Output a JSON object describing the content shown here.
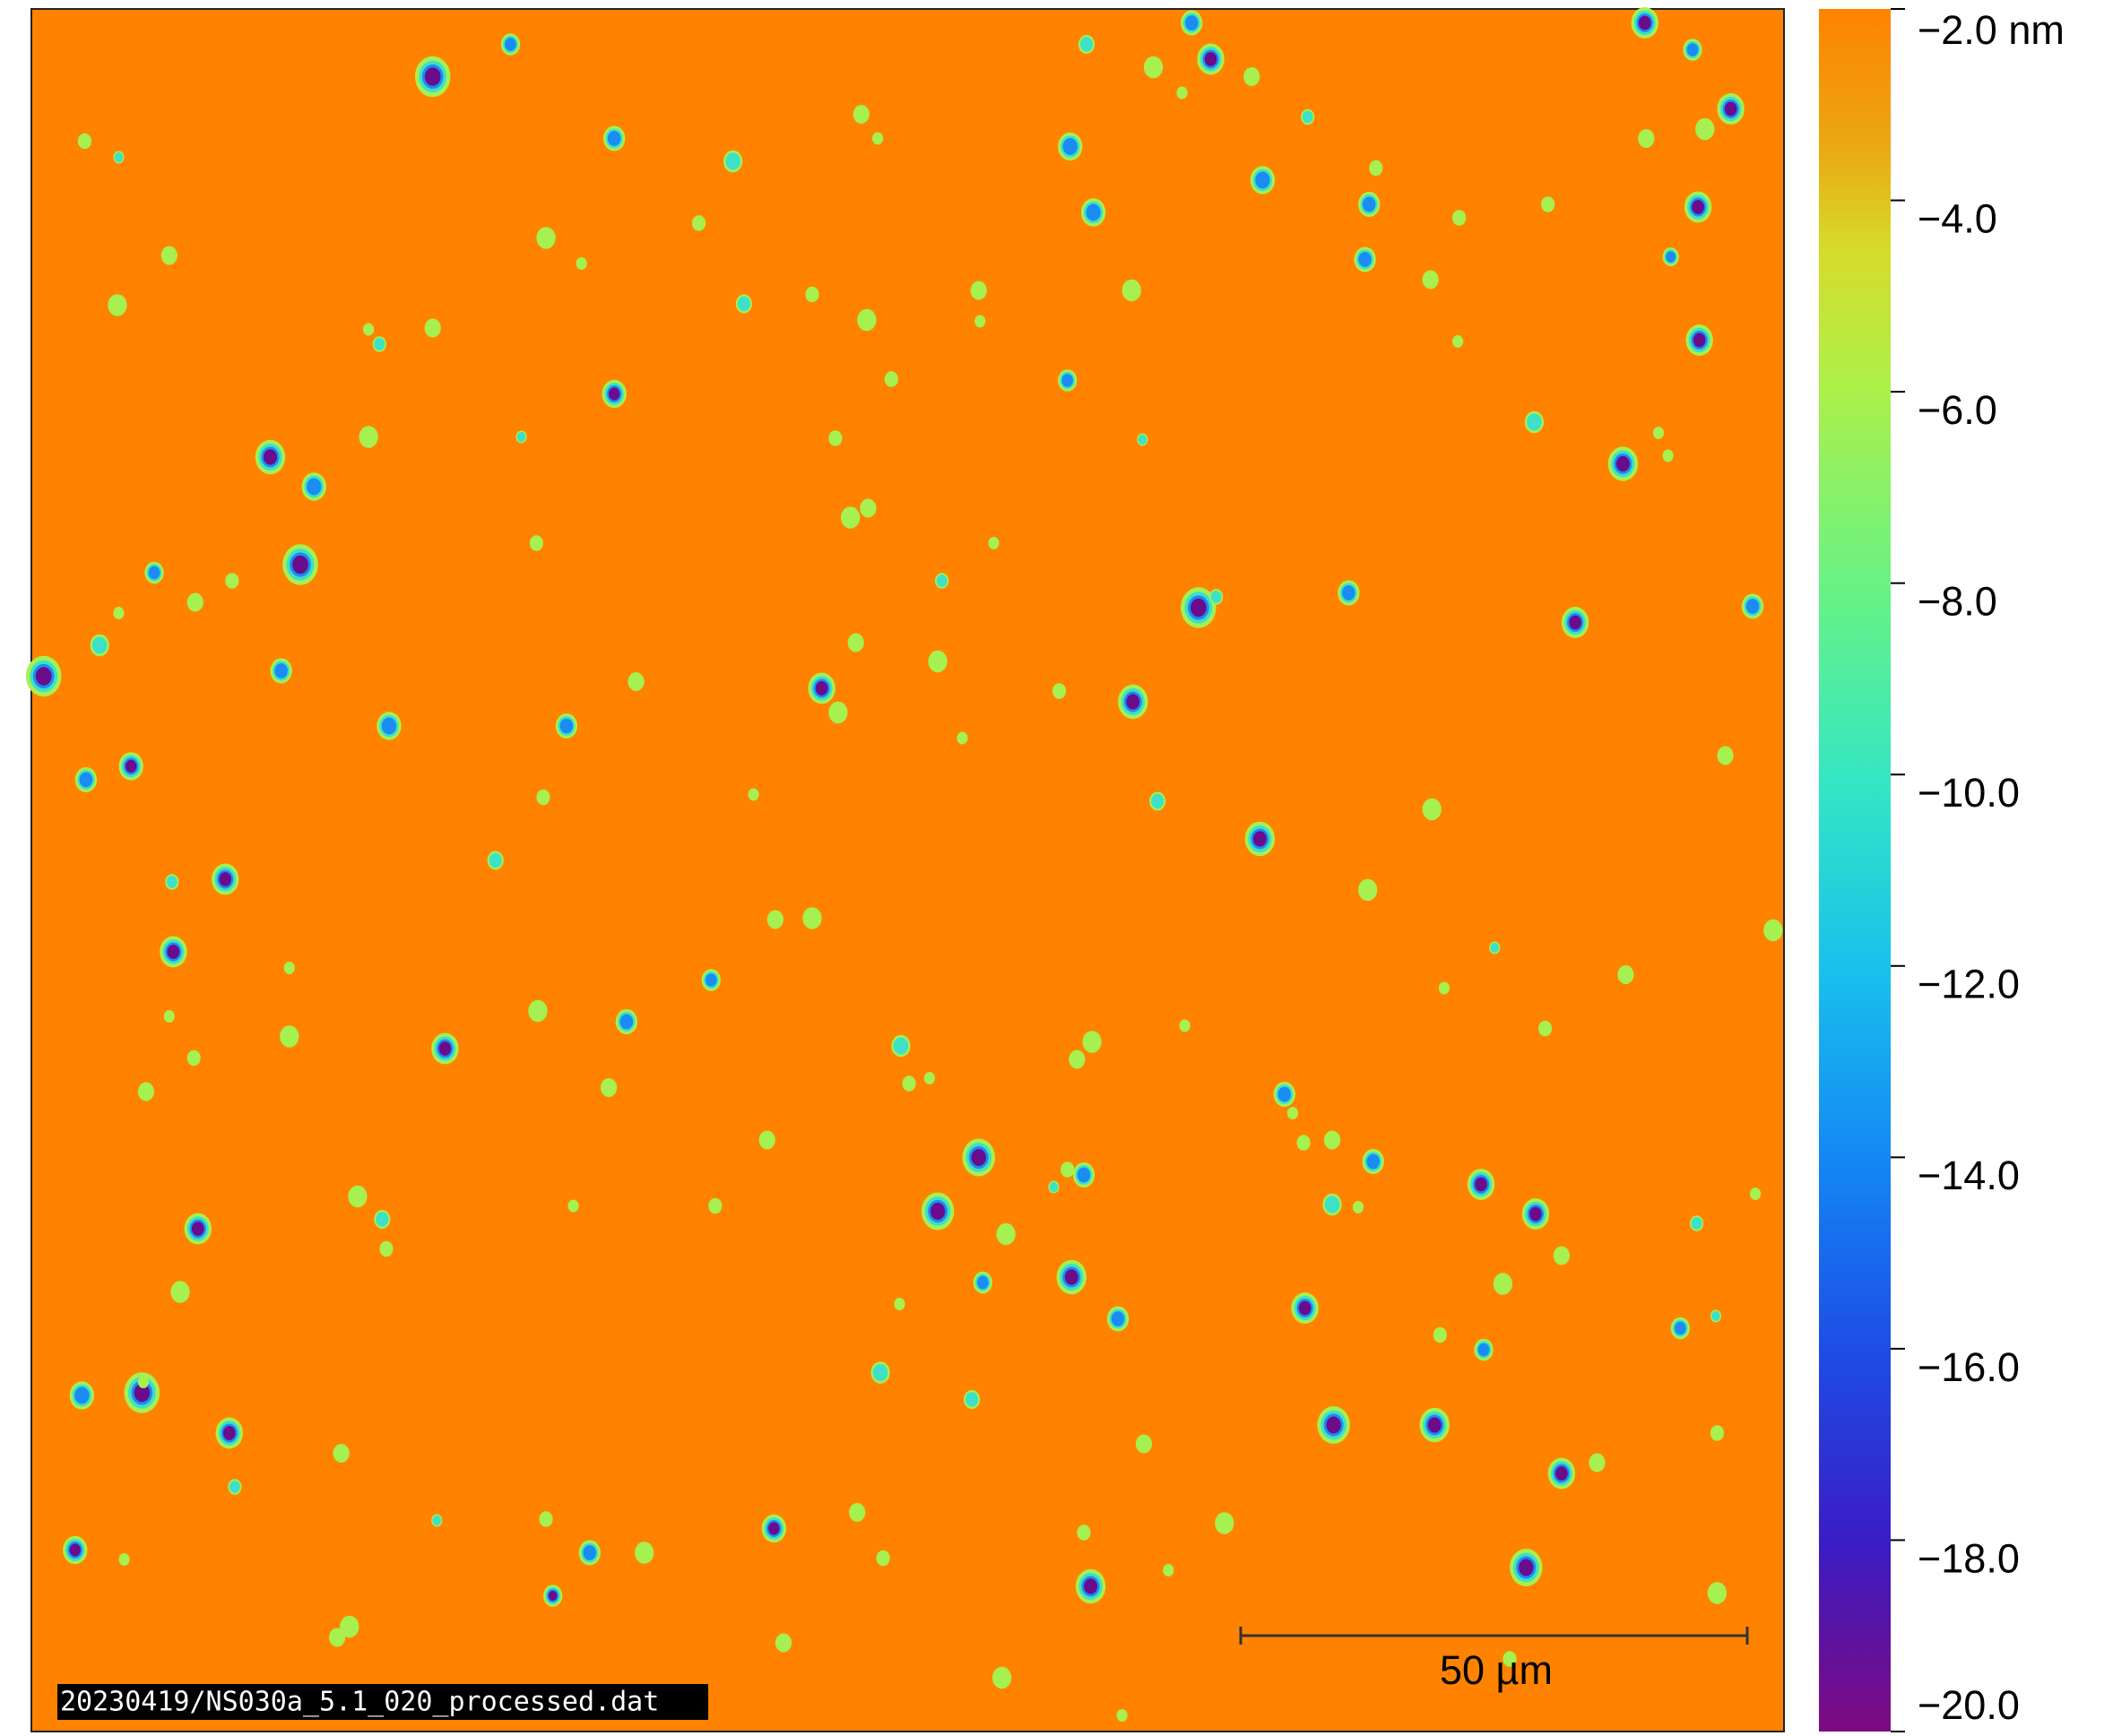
{
  "chart_data": {
    "type": "heatmap",
    "ylim": [
      -20,
      -2
    ],
    "yticks": [
      {
        "value": -2,
        "label": "−2.0 nm"
      },
      {
        "value": -4,
        "label": "−4.0"
      },
      {
        "value": -6,
        "label": "−6.0"
      },
      {
        "value": -8,
        "label": "−8.0"
      },
      {
        "value": -10,
        "label": "−10.0"
      },
      {
        "value": -12,
        "label": "−12.0"
      },
      {
        "value": -14,
        "label": "−14.0"
      },
      {
        "value": -16,
        "label": "−16.0"
      },
      {
        "value": -18,
        "label": "−18.0"
      },
      {
        "value": -20,
        "label": "−20.0"
      }
    ],
    "scale_bar": "50 µm",
    "filename": "20230419/NS030a_5.1_020_processed.dat"
  }
}
